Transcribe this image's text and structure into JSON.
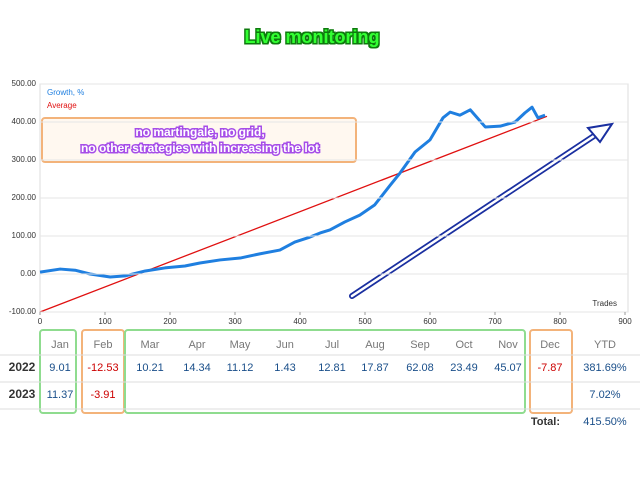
{
  "chart_data": {
    "type": "line",
    "title": "Live monitoring",
    "x_label": "Trades",
    "annotations": [
      "no martingale, no grid,",
      "no other strategies with increasing the lot"
    ],
    "xlim": [
      0,
      900
    ],
    "xticks": [
      0,
      100,
      200,
      300,
      400,
      500,
      600,
      700,
      800,
      900
    ],
    "ylim": [
      -100,
      500
    ],
    "yticks": [
      {
        "value": -100,
        "label": "-100.00"
      },
      {
        "value": 0,
        "label": "0.00"
      },
      {
        "value": 100,
        "label": "100.00"
      },
      {
        "value": 200,
        "label": "200.00"
      },
      {
        "value": 300,
        "label": "300.00"
      },
      {
        "value": 400,
        "label": "400.00"
      },
      {
        "value": 500,
        "label": "500.00"
      }
    ],
    "series": [
      {
        "name": "Growth, %",
        "color": "#1f7fe0",
        "x": [
          0,
          31,
          54,
          77,
          108,
          131,
          162,
          192,
          223,
          246,
          277,
          308,
          338,
          369,
          392,
          415,
          431,
          446,
          469,
          492,
          515,
          538,
          554,
          577,
          600,
          620,
          631,
          646,
          662,
          685,
          708,
          731,
          746,
          757,
          766,
          777
        ],
        "values": [
          5,
          13,
          10,
          0,
          -8,
          -5,
          8,
          16,
          21,
          29,
          37,
          42,
          53,
          63,
          84,
          97,
          108,
          116,
          137,
          155,
          182,
          232,
          266,
          321,
          353,
          411,
          426,
          418,
          432,
          387,
          389,
          400,
          424,
          439,
          411,
          418
        ]
      },
      {
        "name": "Average",
        "color": "#e01010",
        "x": [
          0,
          780
        ],
        "values": [
          -100,
          415
        ]
      }
    ]
  },
  "table": {
    "columns": [
      "Jan",
      "Feb",
      "Mar",
      "Apr",
      "May",
      "Jun",
      "Jul",
      "Aug",
      "Sep",
      "Oct",
      "Nov",
      "Dec",
      "YTD"
    ],
    "rows": [
      [
        "2022",
        "9.01",
        "-12.53",
        "10.21",
        "14.34",
        "11.12",
        "1.43",
        "12.81",
        "17.87",
        "62.08",
        "23.49",
        "45.07",
        "-7.87",
        "381.69%"
      ],
      [
        "2023",
        "11.37",
        "-3.91",
        null,
        null,
        null,
        null,
        null,
        null,
        null,
        null,
        null,
        null,
        "7.02%"
      ]
    ],
    "total": {
      "label": "Total:",
      "value": "415.50%"
    }
  }
}
